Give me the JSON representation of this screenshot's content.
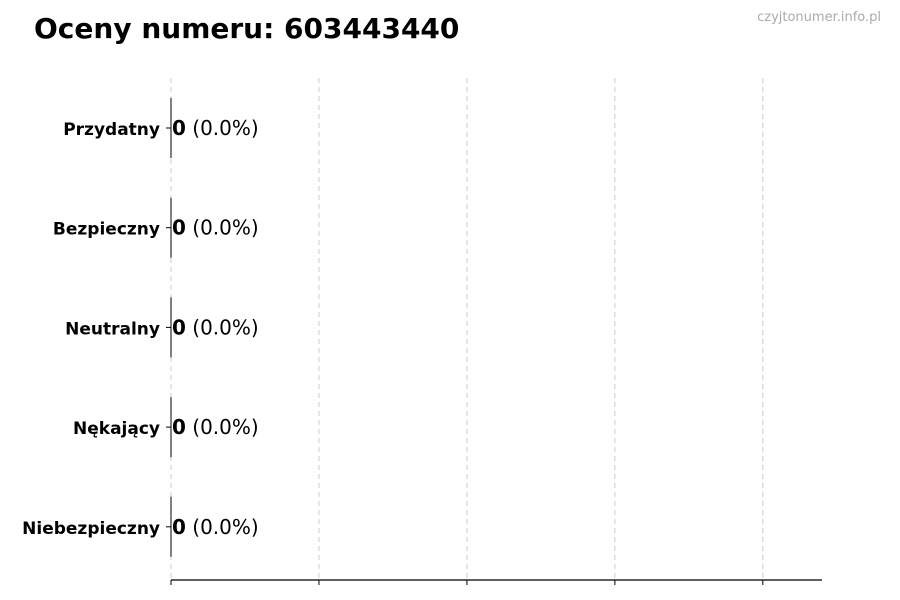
{
  "watermark": "czyjtonumer.info.pl",
  "chart_data": {
    "type": "bar",
    "orientation": "horizontal",
    "title": "Oceny numeru: 603443440",
    "categories": [
      "Przydatny",
      "Bezpieczny",
      "Neutralny",
      "Nękający",
      "Niebezpieczny"
    ],
    "values": [
      0,
      0,
      0,
      0,
      0
    ],
    "labels": [
      "0",
      "0",
      "0",
      "0",
      "0"
    ],
    "percent_labels": [
      "(0.0%)",
      "(0.0%)",
      "(0.0%)",
      "(0.0%)",
      "(0.0%)"
    ],
    "xlim": [
      0,
      4.4
    ],
    "xticks": [
      0,
      1,
      2,
      3,
      4
    ],
    "xtick_labels_shown": false,
    "grid": "x-dashed",
    "colors": {
      "bar_edge": "#000000",
      "grid": "#cccccc",
      "watermark": "#aaaaaa"
    }
  }
}
